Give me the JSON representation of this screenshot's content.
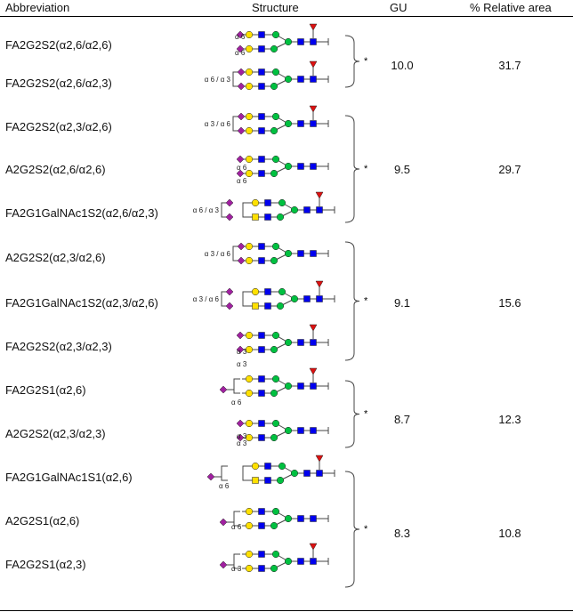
{
  "header": {
    "abbreviation": "Abbreviation",
    "structure": "Structure",
    "gu": "GU",
    "relative_area": "% Relative area"
  },
  "rows": [
    {
      "abbr": "FA2G2S2(α2,6/α2,6)"
    },
    {
      "abbr": "FA2G2S2(α2,6/α2,3)"
    },
    {
      "abbr": "FA2G2S2(α2,3/α2,6)"
    },
    {
      "abbr": "A2G2S2(α2,6/α2,6)"
    },
    {
      "abbr": "FA2G1GalNAc1S2(α2,6/α2,3)"
    },
    {
      "abbr": "A2G2S2(α2,3/α2,6)"
    },
    {
      "abbr": "FA2G1GalNAc1S2(α2,3/α2,6)"
    },
    {
      "abbr": "FA2G2S2(α2,3/α2,3)"
    },
    {
      "abbr": "FA2G2S1(α2,6)"
    },
    {
      "abbr": "A2G2S2(α2,3/α2,3)"
    },
    {
      "abbr": "FA2G1GalNAc1S1(α2,6)"
    },
    {
      "abbr": "A2G2S1(α2,6)"
    },
    {
      "abbr": "FA2G2S1(α2,3)"
    }
  ],
  "groups": [
    {
      "gu": "10.0",
      "area": "31.7",
      "marker": "*"
    },
    {
      "gu": "9.5",
      "area": "29.7",
      "marker": "*"
    },
    {
      "gu": "9.1",
      "area": "15.6",
      "marker": "*"
    },
    {
      "gu": "8.7",
      "area": "12.3",
      "marker": "*"
    },
    {
      "gu": "8.3",
      "area": "10.8",
      "marker": "*"
    }
  ],
  "linkage_labels": {
    "a6": "α 6",
    "a3": "α 3",
    "a63": "α 6 / α 3",
    "a36": "α 3 / α 6"
  },
  "colors": {
    "sialic_acid": "#a020a0",
    "galactose": "#ffe000",
    "glcnac": "#0000ee",
    "mannose": "#00c040",
    "fucose": "#dd1111",
    "galnac": "#ffe000"
  }
}
